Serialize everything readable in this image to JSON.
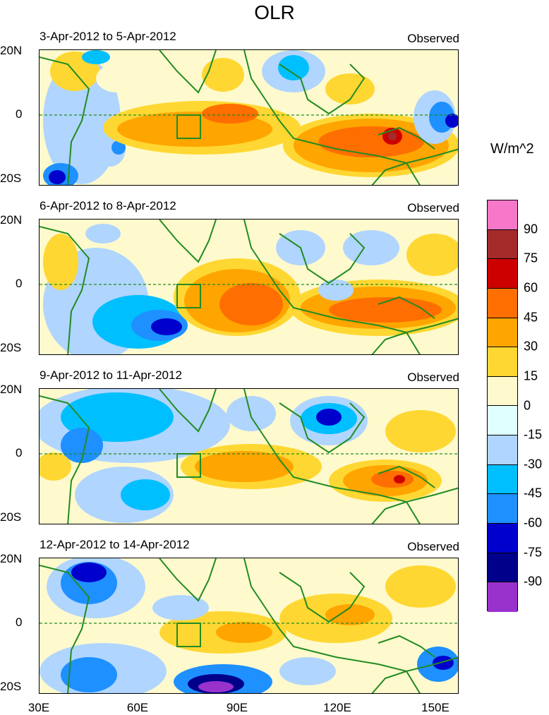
{
  "title": "OLR",
  "units": "W/m^2",
  "panels": [
    {
      "date": "3-Apr-2012 to 5-Apr-2012",
      "label": "Observed"
    },
    {
      "date": "6-Apr-2012 to 8-Apr-2012",
      "label": "Observed"
    },
    {
      "date": "9-Apr-2012 to 11-Apr-2012",
      "label": "Observed"
    },
    {
      "date": "12-Apr-2012 to 14-Apr-2012",
      "label": "Observed"
    }
  ],
  "lat_labels": [
    "20N",
    "0",
    "20S"
  ],
  "lon_labels": [
    "30E",
    "60E",
    "90E",
    "120E",
    "150E"
  ],
  "colorbar": {
    "colors": [
      "#f777c8",
      "#a52a2a",
      "#cd0000",
      "#ff6e00",
      "#ffa500",
      "#ffd732",
      "#fffacd",
      "#e0ffff",
      "#b0d5ff",
      "#00bfff",
      "#1e90ff",
      "#0000cd",
      "#00008b",
      "#9932cc"
    ],
    "labels": [
      "90",
      "75",
      "60",
      "45",
      "30",
      "15",
      "0",
      "-15",
      "-30",
      "-45",
      "-60",
      "-75",
      "-90"
    ]
  },
  "colors": {
    "coast": "#228b22",
    "box": "#228b22"
  }
}
